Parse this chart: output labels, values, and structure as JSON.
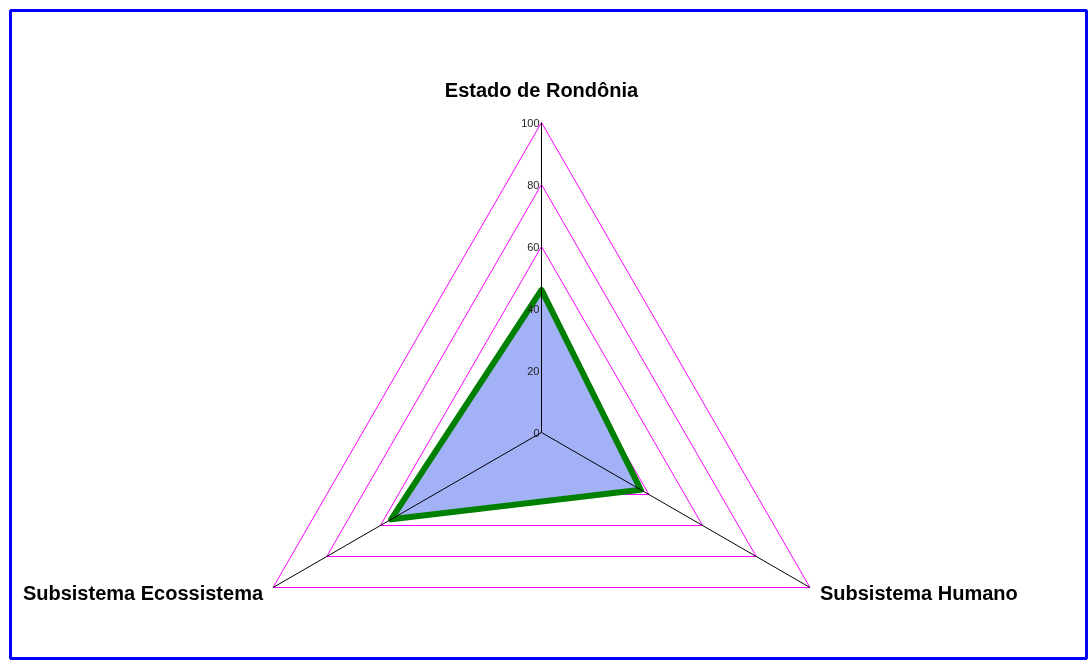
{
  "chart_data": {
    "type": "radar",
    "categories": [
      "Estado de Rondônia",
      "Subsistema Humano",
      "Subsistema Ecossistema"
    ],
    "series": [
      {
        "color": "#008000",
        "values": [
          46,
          37,
          56
        ]
      }
    ],
    "ylim": [
      0,
      100
    ],
    "yticks": [
      {
        "value": 0,
        "label": "0"
      },
      {
        "value": 20,
        "label": "20"
      },
      {
        "value": 40,
        "label": "40"
      },
      {
        "value": 60,
        "label": "60"
      },
      {
        "value": 80,
        "label": "80"
      },
      {
        "value": 100,
        "label": "100"
      }
    ],
    "grid": true
  }
}
